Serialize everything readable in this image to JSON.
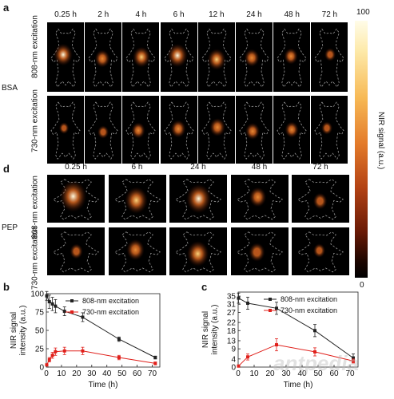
{
  "panels": {
    "a": {
      "letter": "a",
      "group_label": "BSA",
      "times": [
        "0.25 h",
        "2 h",
        "4 h",
        "6 h",
        "12 h",
        "24 h",
        "48 h",
        "72 h"
      ],
      "rows": [
        "808-nm excitation",
        "730-nm excitation"
      ],
      "signal_808": [
        0.85,
        0.55,
        0.75,
        0.95,
        0.8,
        0.55,
        0.45,
        0.25
      ],
      "signal_730": [
        0.15,
        0.25,
        0.45,
        0.55,
        0.6,
        0.5,
        0.45,
        0.25
      ]
    },
    "d": {
      "letter": "d",
      "group_label": "PEP",
      "times": [
        "0.25 h",
        "6 h",
        "24 h",
        "48 h",
        "72 h"
      ],
      "rows": [
        "808-nm excitation",
        "730-nm excitation"
      ],
      "signal_808": [
        0.95,
        0.75,
        0.85,
        0.45,
        0.3
      ],
      "signal_730": [
        0.25,
        0.5,
        0.7,
        0.4,
        0.2
      ]
    },
    "b": {
      "letter": "b"
    },
    "c": {
      "letter": "c"
    }
  },
  "colorbar": {
    "max_label": "100",
    "min_label": "0",
    "title": "NIR signal (a.u.)"
  },
  "colors": {
    "series_808": "#222222",
    "series_730": "#e0201b"
  },
  "chart_data": [
    {
      "type": "line",
      "panel": "b",
      "xlabel": "Time (h)",
      "ylabel": "NIR signal intensity (a.u.)",
      "xlim": [
        0,
        75
      ],
      "ylim": [
        0,
        100
      ],
      "xticks": [
        0,
        10,
        20,
        30,
        40,
        50,
        60,
        70
      ],
      "yticks": [
        0,
        25,
        50,
        75,
        100
      ],
      "legend": "top-right",
      "series": [
        {
          "name": "808-nm excitation",
          "color": "#222222",
          "x": [
            0.25,
            2,
            4,
            6,
            12,
            24,
            48,
            72
          ],
          "y": [
            97,
            89,
            86,
            83,
            76,
            68,
            38,
            13
          ],
          "err": [
            6,
            9,
            9,
            9,
            6,
            6,
            3,
            2
          ]
        },
        {
          "name": "730-nm excitation",
          "color": "#e0201b",
          "x": [
            0.25,
            2,
            4,
            6,
            12,
            24,
            48,
            72
          ],
          "y": [
            3,
            10,
            16,
            21,
            22,
            22,
            13,
            5
          ],
          "err": [
            1,
            3,
            4,
            5,
            5,
            5,
            3,
            2
          ]
        }
      ]
    },
    {
      "type": "line",
      "panel": "c",
      "xlabel": "Time (h)",
      "ylabel": "NIR signal intensity (a.u.)",
      "xlim": [
        0,
        75
      ],
      "ylim": [
        0,
        37
      ],
      "xticks": [
        0,
        10,
        20,
        30,
        40,
        50,
        60,
        70
      ],
      "yticks": [
        0,
        4,
        9,
        13,
        18,
        22,
        27,
        31,
        35
      ],
      "legend": "top-right",
      "series": [
        {
          "name": "808-nm excitation",
          "color": "#222222",
          "x": [
            0.25,
            6,
            24,
            48,
            72
          ],
          "y": [
            34,
            31.5,
            29,
            18,
            4.5
          ],
          "err": [
            2.5,
            3,
            3,
            3,
            2
          ]
        },
        {
          "name": "730-nm excitation",
          "color": "#e0201b",
          "x": [
            0.25,
            6,
            24,
            48,
            72
          ],
          "y": [
            0.5,
            5,
            11,
            7.5,
            3
          ],
          "err": [
            0.5,
            1.5,
            3,
            2,
            1
          ]
        }
      ]
    }
  ]
}
